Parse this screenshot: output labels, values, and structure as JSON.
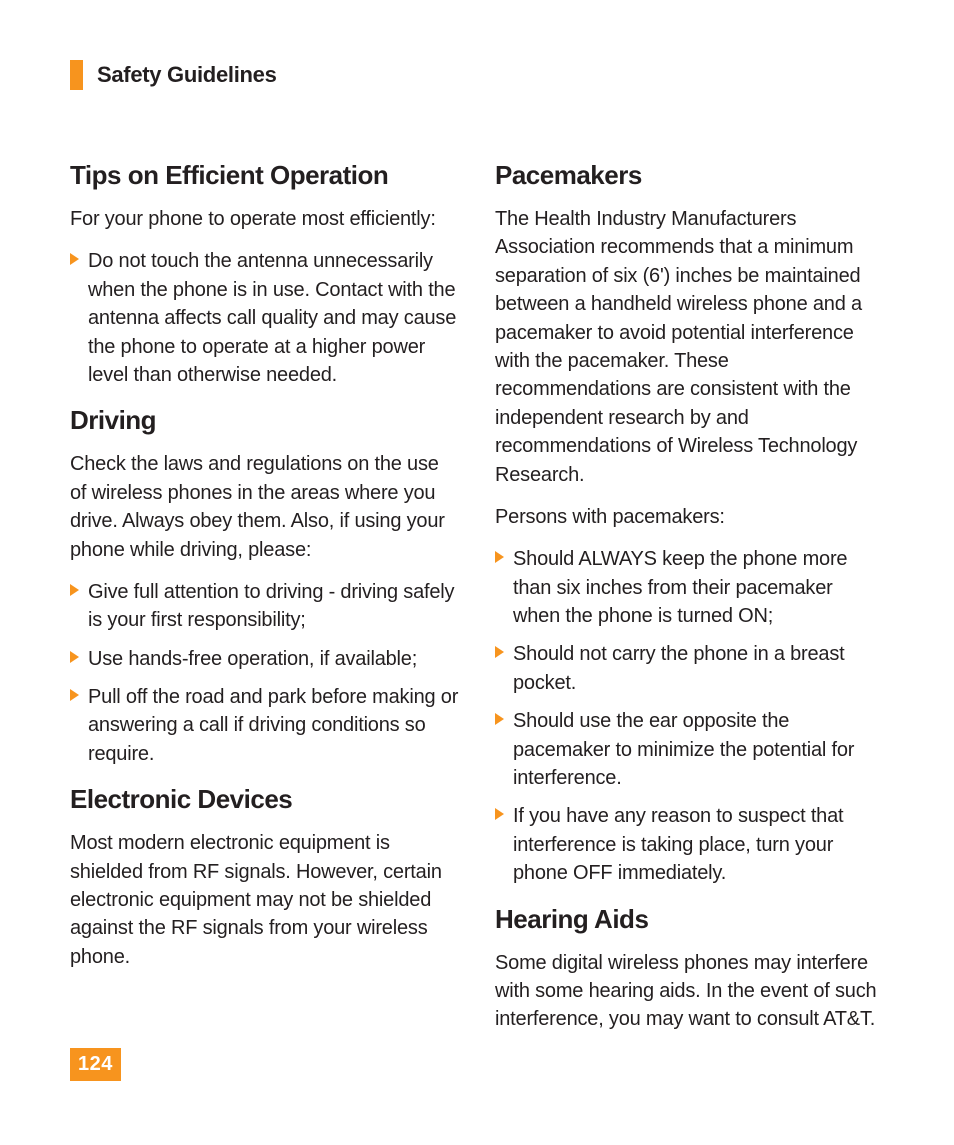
{
  "colors": {
    "accent": "#f7941e",
    "text": "#231f20",
    "background": "#ffffff",
    "page_num_text": "#ffffff"
  },
  "typography": {
    "header_size_pt": 22,
    "heading_size_pt": 26,
    "body_size_pt": 20,
    "body_weight": 300,
    "heading_weight": 700
  },
  "header": {
    "title": "Safety Guidelines"
  },
  "page_number": "124",
  "left": {
    "tips": {
      "heading": "Tips on Efficient Operation",
      "intro": "For your phone to operate most efficiently:",
      "bullets": [
        "Do not touch the antenna unnecessarily when the phone is in use. Contact with the antenna affects call quality and may cause the phone to operate at a higher power level than otherwise needed."
      ]
    },
    "driving": {
      "heading": "Driving",
      "intro": "Check the laws and regulations on the use of wireless phones in the areas where you drive. Always obey them. Also, if using your phone while driving, please:",
      "bullets": [
        "Give full attention to driving - driving safely is your first responsibility;",
        "Use hands-free operation, if available;",
        "Pull off the road and park before making or answering a call if driving conditions so require."
      ]
    },
    "electronic": {
      "heading": "Electronic Devices",
      "intro": "Most modern electronic equipment is shielded from RF signals. However, certain electronic equipment may not be shielded against the RF signals from your wireless phone."
    }
  },
  "right": {
    "pacemakers": {
      "heading": "Pacemakers",
      "intro": "The Health Industry Manufacturers Association recommends that a minimum separation of six (6') inches be maintained between a handheld wireless phone and a pacemaker to avoid potential interference with the pacemaker. These recommendations are consistent with the independent research by and recommendations of Wireless Technology Research.",
      "sub": "Persons with pacemakers:",
      "bullets": [
        "Should ALWAYS keep the phone more than six inches from their pacemaker when the phone is turned ON;",
        "Should not carry the phone in a breast pocket.",
        "Should use the ear opposite the pacemaker to minimize the potential for interference.",
        "If you have any reason to suspect that interference is taking place, turn your phone OFF immediately."
      ]
    },
    "hearing": {
      "heading": "Hearing Aids",
      "intro": "Some digital wireless phones may interfere with some hearing aids. In the event of such interference, you may want to consult AT&T."
    }
  }
}
